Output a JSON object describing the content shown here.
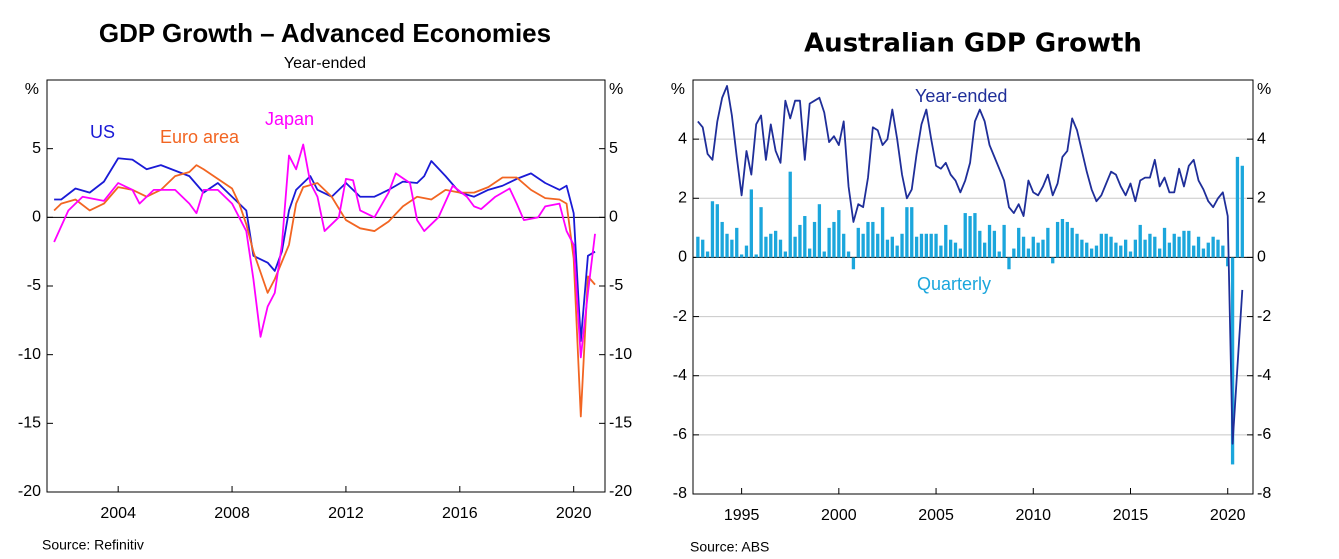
{
  "chart_data": [
    {
      "type": "line",
      "title": "GDP Growth – Advanced Economies",
      "subtitle": "Year-ended",
      "ylabel": "%",
      "y2label": "%",
      "source": "Source:   Refinitiv",
      "xlim": [
        2001.5,
        2021.1
      ],
      "xticks": [
        2004,
        2008,
        2012,
        2016,
        2020
      ],
      "ylim": [
        -20,
        10
      ],
      "yticks": [
        -20,
        -15,
        -10,
        -5,
        0,
        5
      ],
      "y2lim": [
        -20,
        10
      ],
      "y2ticks": [
        -20,
        -15,
        -10,
        -5,
        0,
        5
      ],
      "grid": false,
      "series": [
        {
          "name": "US",
          "color": "#1a1ad6",
          "x": [
            2001.75,
            2002,
            2002.5,
            2003,
            2003.5,
            2004,
            2004.5,
            2005,
            2005.5,
            2006,
            2006.5,
            2007,
            2007.5,
            2008,
            2008.5,
            2008.75,
            2009.25,
            2009.5,
            2009.75,
            2010,
            2010.25,
            2010.75,
            2011,
            2011.5,
            2012,
            2012.5,
            2013,
            2013.5,
            2014,
            2014.5,
            2014.75,
            2015,
            2015.5,
            2016,
            2016.5,
            2017,
            2017.5,
            2018,
            2018.5,
            2019,
            2019.5,
            2019.75,
            2020,
            2020.25,
            2020.5,
            2020.75
          ],
          "values": [
            1.3,
            1.3,
            2.1,
            1.8,
            2.6,
            4.3,
            4.2,
            3.5,
            3.8,
            3.4,
            3.0,
            1.8,
            2.5,
            1.5,
            0.5,
            -2.8,
            -3.3,
            -3.9,
            -2.5,
            0.5,
            2.0,
            3.0,
            2.0,
            1.5,
            2.5,
            1.5,
            1.5,
            2.0,
            2.6,
            2.5,
            3.0,
            4.1,
            3.0,
            1.8,
            1.5,
            2.0,
            2.3,
            2.8,
            3.2,
            2.5,
            2.0,
            2.3,
            0.3,
            -9.0,
            -2.8,
            -2.5
          ]
        },
        {
          "name": "Euro area",
          "color": "#f26522",
          "x": [
            2001.75,
            2002,
            2002.5,
            2003,
            2003.5,
            2004,
            2004.5,
            2005,
            2005.5,
            2006,
            2006.5,
            2006.75,
            2007,
            2007.5,
            2008,
            2008.25,
            2008.5,
            2008.75,
            2009.25,
            2009.5,
            2010,
            2010.25,
            2010.5,
            2011,
            2011.5,
            2012,
            2012.5,
            2013,
            2013.5,
            2014,
            2014.5,
            2015,
            2015.5,
            2016,
            2016.5,
            2017,
            2017.5,
            2018,
            2018.5,
            2019,
            2019.5,
            2019.75,
            2020,
            2020.25,
            2020.5,
            2020.75
          ],
          "values": [
            0.5,
            1.0,
            1.3,
            0.5,
            1.0,
            2.2,
            2.0,
            1.5,
            2.0,
            3.0,
            3.3,
            3.8,
            3.5,
            2.8,
            2.1,
            1.0,
            -0.5,
            -2.5,
            -5.5,
            -4.5,
            -2.0,
            1.0,
            2.2,
            2.5,
            1.5,
            -0.2,
            -0.8,
            -1.0,
            -0.3,
            0.8,
            1.5,
            1.3,
            2.0,
            1.8,
            1.8,
            2.2,
            2.9,
            2.9,
            2.0,
            1.4,
            1.3,
            1.0,
            -3.0,
            -14.5,
            -4.3,
            -4.9
          ]
        },
        {
          "name": "Japan",
          "color": "#ff00ff",
          "x": [
            2001.75,
            2002.25,
            2002.75,
            2003.5,
            2004,
            2004.5,
            2004.75,
            2005.25,
            2006,
            2006.5,
            2006.75,
            2007,
            2007.5,
            2008,
            2008.5,
            2008.75,
            2009,
            2009.25,
            2009.5,
            2009.75,
            2010,
            2010.25,
            2010.5,
            2010.75,
            2011,
            2011.25,
            2011.75,
            2012,
            2012.25,
            2012.5,
            2013,
            2013.5,
            2013.75,
            2014.25,
            2014.5,
            2014.75,
            2015.25,
            2015.75,
            2016.25,
            2016.5,
            2016.75,
            2017.25,
            2017.75,
            2018,
            2018.25,
            2018.75,
            2019,
            2019.5,
            2019.75,
            2020,
            2020.25,
            2020.5,
            2020.75
          ],
          "values": [
            -1.8,
            0.5,
            1.5,
            1.2,
            2.5,
            2.0,
            1.0,
            2.0,
            2.0,
            1.0,
            0.3,
            2.0,
            2.0,
            1.0,
            -1.0,
            -4.5,
            -8.7,
            -6.5,
            -5.5,
            -2.0,
            4.5,
            3.5,
            5.3,
            2.5,
            1.5,
            -1.0,
            0.0,
            2.8,
            2.7,
            0.5,
            0.0,
            1.8,
            3.2,
            2.5,
            -0.2,
            -1.0,
            0.0,
            2.3,
            1.5,
            0.8,
            0.6,
            1.5,
            2.1,
            1.0,
            -0.2,
            0.0,
            0.8,
            1.0,
            -1.0,
            -2.0,
            -10.2,
            -5.5,
            -1.2
          ]
        }
      ]
    },
    {
      "type": "bar",
      "title": "Australian GDP Growth",
      "ylabel": "%",
      "y2label": "%",
      "source": "Source:   ABS",
      "xlim": [
        1992.5,
        2021.3
      ],
      "xticks": [
        1995,
        2000,
        2005,
        2010,
        2015,
        2020
      ],
      "ylim": [
        -8,
        6
      ],
      "yticks": [
        -8,
        -6,
        -4,
        -2,
        0,
        2,
        4
      ],
      "y2lim": [
        -8,
        6
      ],
      "y2ticks": [
        -8,
        -6,
        -4,
        -2,
        0,
        2,
        4
      ],
      "grid": true,
      "x": [
        1992.75,
        1993,
        1993.25,
        1993.5,
        1993.75,
        1994,
        1994.25,
        1994.5,
        1994.75,
        1995,
        1995.25,
        1995.5,
        1995.75,
        1996,
        1996.25,
        1996.5,
        1996.75,
        1997,
        1997.25,
        1997.5,
        1997.75,
        1998,
        1998.25,
        1998.5,
        1998.75,
        1999,
        1999.25,
        1999.5,
        1999.75,
        2000,
        2000.25,
        2000.5,
        2000.75,
        2001,
        2001.25,
        2001.5,
        2001.75,
        2002,
        2002.25,
        2002.5,
        2002.75,
        2003,
        2003.25,
        2003.5,
        2003.75,
        2004,
        2004.25,
        2004.5,
        2004.75,
        2005,
        2005.25,
        2005.5,
        2005.75,
        2006,
        2006.25,
        2006.5,
        2006.75,
        2007,
        2007.25,
        2007.5,
        2007.75,
        2008,
        2008.25,
        2008.5,
        2008.75,
        2009,
        2009.25,
        2009.5,
        2009.75,
        2010,
        2010.25,
        2010.5,
        2010.75,
        2011,
        2011.25,
        2011.5,
        2011.75,
        2012,
        2012.25,
        2012.5,
        2012.75,
        2013,
        2013.25,
        2013.5,
        2013.75,
        2014,
        2014.25,
        2014.5,
        2014.75,
        2015,
        2015.25,
        2015.5,
        2015.75,
        2016,
        2016.25,
        2016.5,
        2016.75,
        2017,
        2017.25,
        2017.5,
        2017.75,
        2018,
        2018.25,
        2018.5,
        2018.75,
        2019,
        2019.25,
        2019.5,
        2019.75,
        2020,
        2020.25,
        2020.5,
        2020.75
      ],
      "series": [
        {
          "name": "Quarterly",
          "type": "bar",
          "color": "#1ba6dc",
          "values": [
            0.7,
            0.6,
            0.2,
            1.9,
            1.8,
            1.2,
            0.8,
            0.6,
            1.0,
            0.1,
            0.4,
            2.3,
            0.1,
            1.7,
            0.7,
            0.8,
            0.9,
            0.6,
            0.2,
            2.9,
            0.7,
            1.1,
            1.4,
            0.3,
            1.2,
            1.8,
            0.2,
            1.0,
            1.2,
            1.6,
            0.8,
            0.2,
            -0.4,
            1.0,
            0.8,
            1.2,
            1.2,
            0.8,
            1.7,
            0.6,
            0.7,
            0.4,
            0.8,
            1.7,
            1.7,
            0.7,
            0.8,
            0.8,
            0.8,
            0.8,
            0.4,
            1.1,
            0.6,
            0.5,
            0.3,
            1.5,
            1.4,
            1.5,
            0.9,
            0.5,
            1.1,
            0.9,
            0.2,
            1.1,
            -0.4,
            0.3,
            1.0,
            0.7,
            0.3,
            0.7,
            0.5,
            0.6,
            1.0,
            -0.2,
            1.2,
            1.3,
            1.2,
            1.0,
            0.8,
            0.6,
            0.5,
            0.3,
            0.4,
            0.8,
            0.8,
            0.7,
            0.5,
            0.4,
            0.6,
            0.2,
            0.6,
            1.1,
            0.6,
            0.8,
            0.7,
            0.3,
            1.0,
            0.5,
            0.8,
            0.7,
            0.9,
            0.9,
            0.4,
            0.7,
            0.3,
            0.5,
            0.7,
            0.6,
            0.4,
            -0.3,
            -7.0,
            3.4,
            3.1
          ]
        },
        {
          "name": "Year-ended",
          "type": "line",
          "color": "#1f2e99",
          "values": [
            4.6,
            4.4,
            3.5,
            3.3,
            4.6,
            5.4,
            5.8,
            4.8,
            3.4,
            2.1,
            3.6,
            2.8,
            4.5,
            4.8,
            3.3,
            4.5,
            3.6,
            3.2,
            5.3,
            4.7,
            5.3,
            5.3,
            3.3,
            5.2,
            5.3,
            5.4,
            4.9,
            3.9,
            4.1,
            3.8,
            4.6,
            2.4,
            1.2,
            1.8,
            1.7,
            2.7,
            4.4,
            4.3,
            3.8,
            4.0,
            5.0,
            4.0,
            2.8,
            2.0,
            2.3,
            3.5,
            4.5,
            5.0,
            4.0,
            3.1,
            3.0,
            3.2,
            2.8,
            2.6,
            2.2,
            2.6,
            3.2,
            4.6,
            5.0,
            4.6,
            3.8,
            3.4,
            3.0,
            2.6,
            1.7,
            1.5,
            1.8,
            1.4,
            2.6,
            2.2,
            2.1,
            2.4,
            2.8,
            2.1,
            2.5,
            3.4,
            3.6,
            4.7,
            4.3,
            3.6,
            2.9,
            2.3,
            1.9,
            2.1,
            2.5,
            2.9,
            2.8,
            2.4,
            2.1,
            2.5,
            1.9,
            2.6,
            2.7,
            2.7,
            3.3,
            2.4,
            2.7,
            2.2,
            2.2,
            3.0,
            2.4,
            3.1,
            3.3,
            2.6,
            2.3,
            1.9,
            1.7,
            2.0,
            2.2,
            1.4,
            -6.3,
            -3.7,
            -1.1
          ]
        }
      ]
    }
  ]
}
